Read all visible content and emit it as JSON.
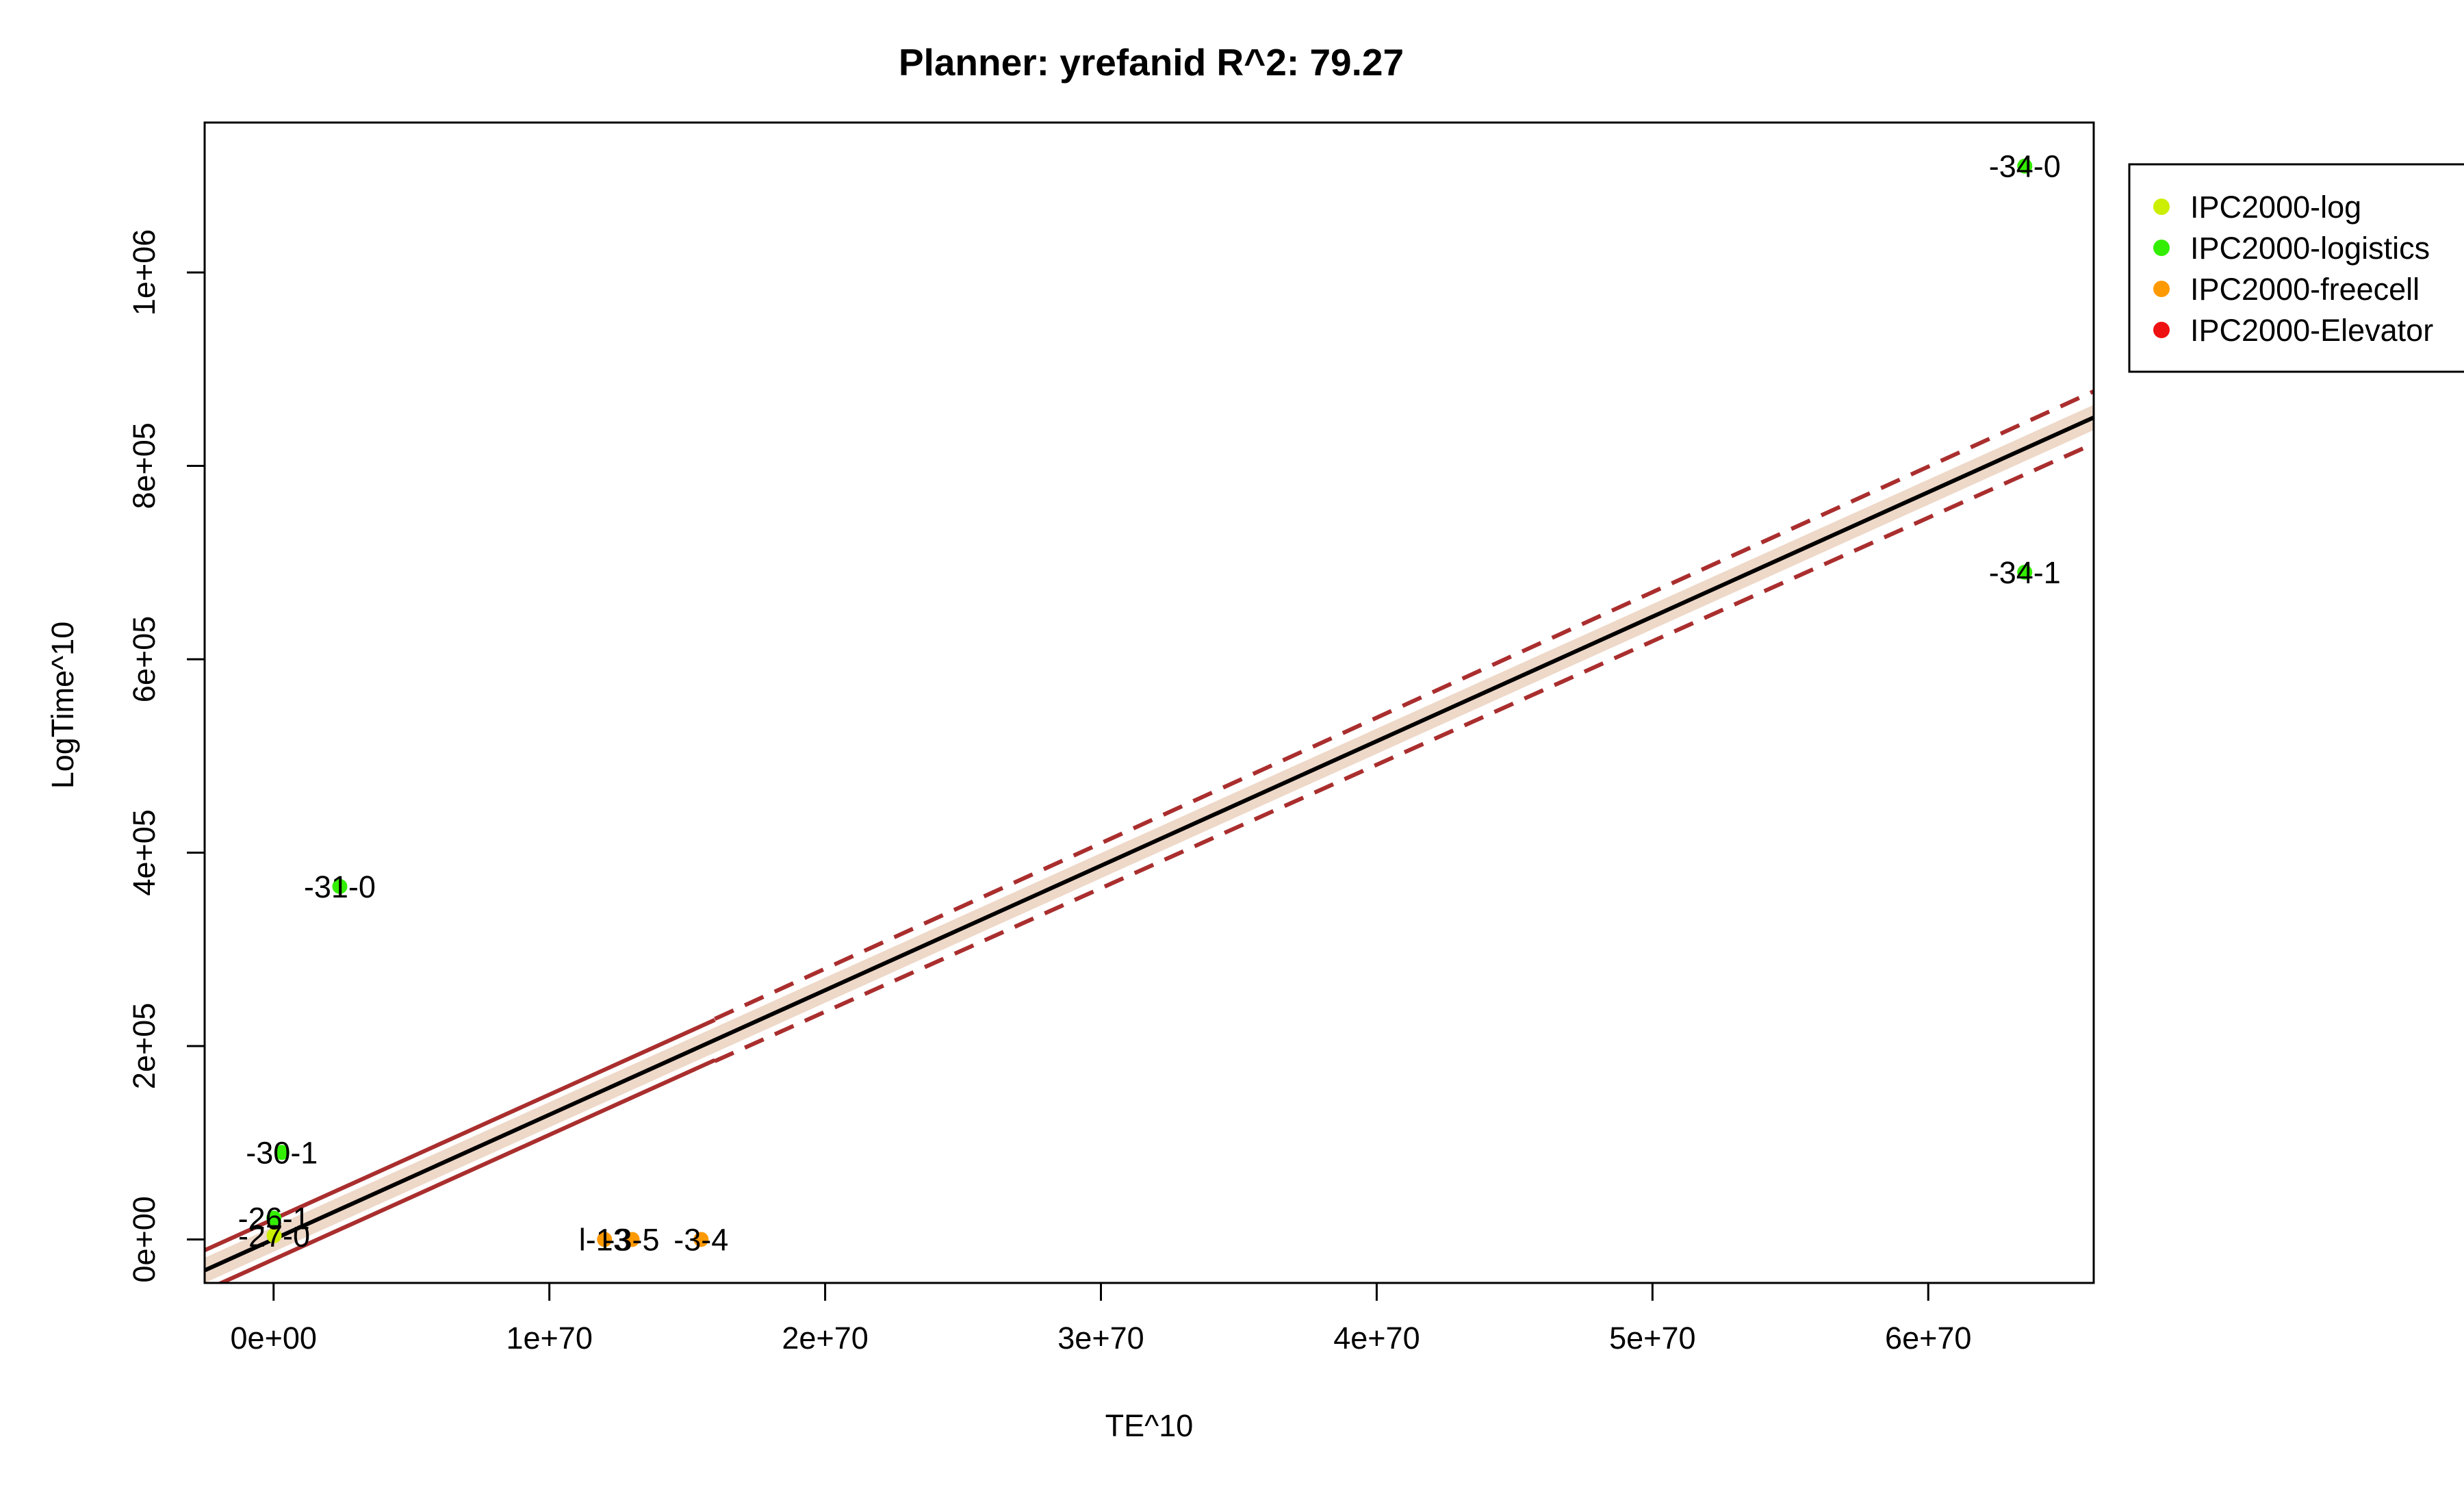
{
  "chart_data": {
    "type": "scatter",
    "title": "Planner: yrefanid R^2: 79.27",
    "xlabel": "TE^10",
    "ylabel": "LogTime^10",
    "xlim": [
      -2.5e+69,
      6.6e+70
    ],
    "ylim": [
      -45000,
      1155000
    ],
    "x_ticks": [
      {
        "value": 0,
        "label": "0e+00"
      },
      {
        "value": 1e+70,
        "label": "1e+70"
      },
      {
        "value": 2e+70,
        "label": "2e+70"
      },
      {
        "value": 3e+70,
        "label": "3e+70"
      },
      {
        "value": 4e+70,
        "label": "4e+70"
      },
      {
        "value": 5e+70,
        "label": "5e+70"
      },
      {
        "value": 6e+70,
        "label": "6e+70"
      }
    ],
    "y_ticks": [
      {
        "value": 0,
        "label": "0e+00"
      },
      {
        "value": 200000,
        "label": "2e+05"
      },
      {
        "value": 400000,
        "label": "4e+05"
      },
      {
        "value": 600000,
        "label": "6e+05"
      },
      {
        "value": 800000,
        "label": "8e+05"
      },
      {
        "value": 1000000,
        "label": "1e+06"
      }
    ],
    "grid": false,
    "legend_position": "top-right, outside plot",
    "legend": [
      {
        "name": "IPC2000-log",
        "color": "#CCEE00"
      },
      {
        "name": "IPC2000-logistics",
        "color": "#33EE00"
      },
      {
        "name": "IPC2000-freecell",
        "color": "#FF9900"
      },
      {
        "name": "IPC2000-Elevator",
        "color": "#EE1111"
      }
    ],
    "points": [
      {
        "x": 6.35e+70,
        "y": 1110000,
        "series": "IPC2000-logistics",
        "label": "-34-0"
      },
      {
        "x": 6.35e+70,
        "y": 690000,
        "series": "IPC2000-logistics",
        "label": "-34-1"
      },
      {
        "x": 2.4e+69,
        "y": 365000,
        "series": "IPC2000-logistics",
        "label": "-31-0"
      },
      {
        "x": 3e+68,
        "y": 90000,
        "series": "IPC2000-logistics",
        "label": "-30-1"
      },
      {
        "x": 1e+67,
        "y": 22000,
        "series": "IPC2000-logistics",
        "label": "-26-1"
      },
      {
        "x": 2e+67,
        "y": 4000,
        "series": "IPC2000-log",
        "label": "-27-0"
      },
      {
        "x": 1.2e+70,
        "y": 0,
        "series": "IPC2000-freecell",
        "label": "l-13"
      },
      {
        "x": 1.3e+70,
        "y": 0,
        "series": "IPC2000-freecell",
        "label": "-3-5"
      },
      {
        "x": 1.55e+70,
        "y": 0,
        "series": "IPC2000-freecell",
        "label": "-3-4"
      }
    ],
    "regression": {
      "fit": {
        "x1": -2.5e+69,
        "y1": -32000,
        "x2": 6.6e+70,
        "y2": 850000,
        "color": "#000000"
      },
      "band_color": "#EED8C8",
      "band_halfwidth": 13000,
      "interval_color": "#AA2E2E"
    }
  }
}
